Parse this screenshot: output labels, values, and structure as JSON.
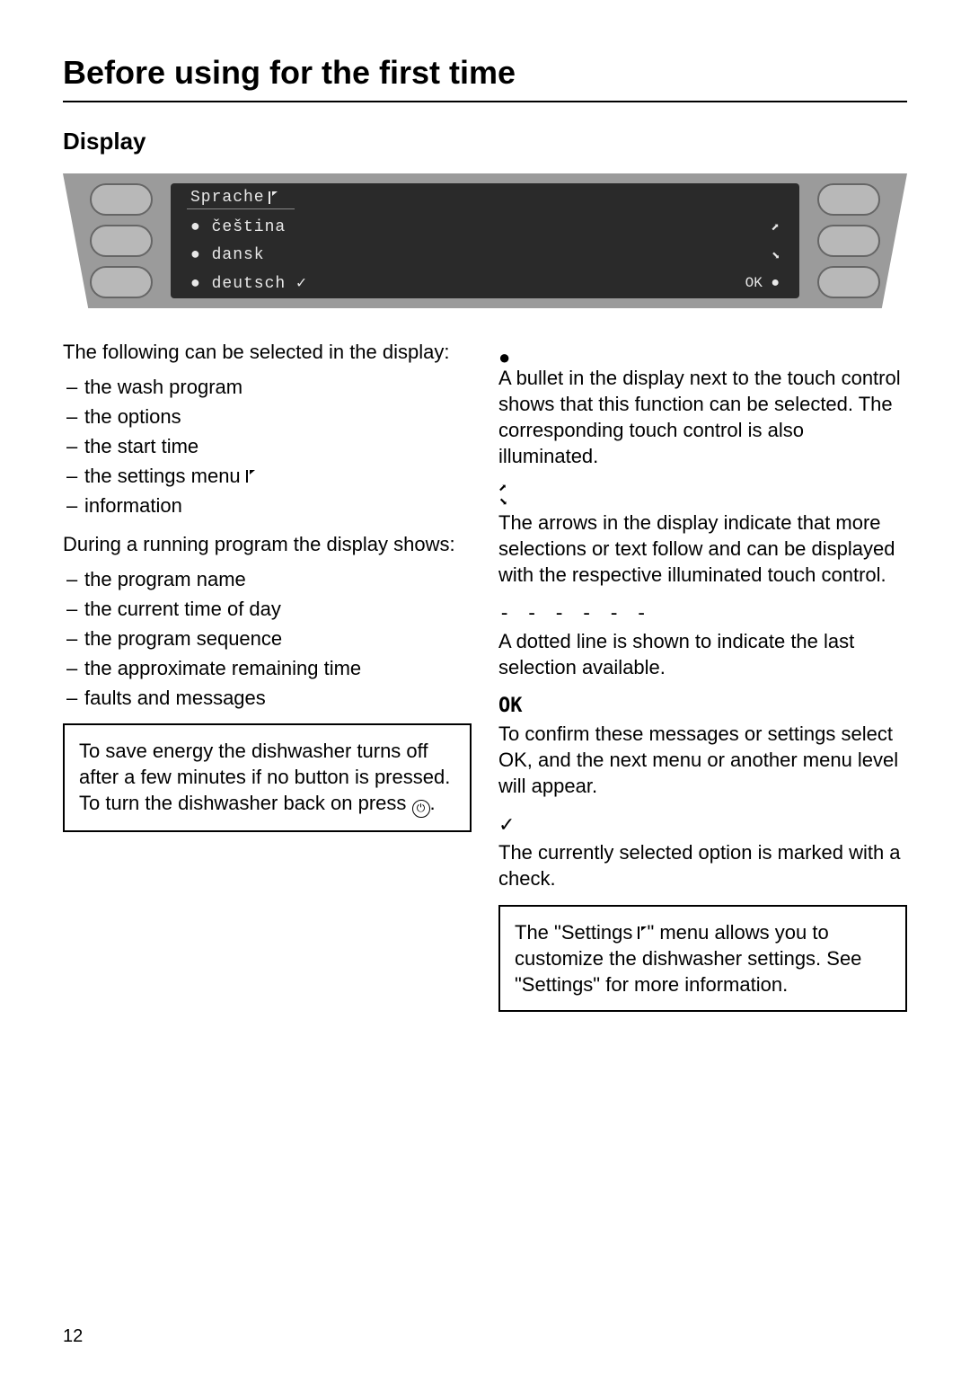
{
  "page": {
    "title": "Before using for the first time",
    "section_title": "Display",
    "page_number": "12"
  },
  "panel": {
    "screen_title": "Sprache",
    "rows": [
      {
        "left": "● čeština",
        "right": "⬈"
      },
      {
        "left": "● dansk",
        "right": "⬊"
      },
      {
        "left": "● deutsch ✓",
        "right": "OK ●"
      }
    ],
    "colors": {
      "outer_bg": "#9b9b9b",
      "button_border": "#666666",
      "button_bg": "#b8b8b8",
      "screen_bg": "#2a2a2a",
      "screen_text": "#e8e8e8"
    }
  },
  "left_col": {
    "intro1": "The following can be selected in the display:",
    "list1": [
      "the wash program",
      "the options",
      "the start time",
      "the settings menu ",
      "information"
    ],
    "settings_flag_after_item_index": 3,
    "intro2": "During a running program the display shows:",
    "list2": [
      "the program name",
      "the current time of day",
      "the program sequence",
      "the approximate remaining time",
      "faults and messages"
    ],
    "box_text_pre": "To save energy the dishwasher turns off after a few minutes if no button is pressed. To turn the dishwasher back on press ",
    "box_text_post": "."
  },
  "right_col": {
    "sym_bullet": "●",
    "bullet_text": "A bullet in the display next to the touch control shows that this function can be selected. The corresponding touch control is also illuminated.",
    "sym_arrows_top": "⬈",
    "sym_arrows_bot": "⬊",
    "arrows_text": "The arrows in the display indicate that more selections or text follow and can be displayed with the respective illuminated touch control.",
    "sym_dots": "- - - - - -",
    "dots_text": "A dotted line is shown to indicate the last selection available.",
    "sym_ok": "OK",
    "ok_text": "To confirm these messages or settings select OK, and the next menu or another menu level will appear.",
    "sym_check": "✓",
    "check_text": "The currently selected option is marked with a check.",
    "box_pre": "The \"Settings ",
    "box_post": "\" menu allows you to customize the dishwasher settings. See \"Settings\" for more information."
  }
}
